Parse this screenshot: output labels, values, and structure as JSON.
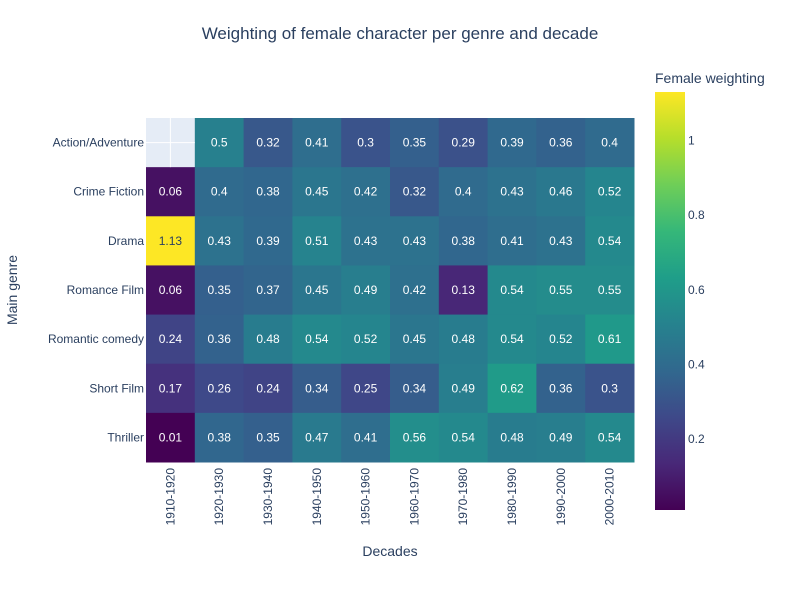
{
  "chart_data": {
    "type": "heatmap",
    "title": "Weighting of female character per genre and decade",
    "xlabel": "Decades",
    "ylabel": "Main genre",
    "colorbar_title": "Female weighting",
    "colorscale": "viridis",
    "zrange": [
      0.01,
      1.13
    ],
    "colorbar_ticks": [
      "0.2",
      "0.4",
      "0.6",
      "0.8",
      "1"
    ],
    "colorbar_tick_values": [
      0.2,
      0.4,
      0.6,
      0.8,
      1.0
    ],
    "x": [
      "1910-1920",
      "1920-1930",
      "1930-1940",
      "1940-1950",
      "1950-1960",
      "1960-1970",
      "1970-1980",
      "1980-1990",
      "1990-2000",
      "2000-2010"
    ],
    "y": [
      "Action/Adventure",
      "Crime Fiction",
      "Drama",
      "Romance Film",
      "Romantic comedy",
      "Short Film",
      "Thriller"
    ],
    "z": [
      [
        null,
        0.5,
        0.32,
        0.41,
        0.3,
        0.35,
        0.29,
        0.39,
        0.36,
        0.4
      ],
      [
        0.06,
        0.4,
        0.38,
        0.45,
        0.42,
        0.32,
        0.4,
        0.43,
        0.46,
        0.52
      ],
      [
        1.13,
        0.43,
        0.39,
        0.51,
        0.43,
        0.43,
        0.38,
        0.41,
        0.43,
        0.54
      ],
      [
        0.06,
        0.35,
        0.37,
        0.45,
        0.49,
        0.42,
        0.13,
        0.54,
        0.55,
        0.55
      ],
      [
        0.24,
        0.36,
        0.48,
        0.54,
        0.52,
        0.45,
        0.48,
        0.54,
        0.52,
        0.61
      ],
      [
        0.17,
        0.26,
        0.24,
        0.34,
        0.25,
        0.34,
        0.49,
        0.62,
        0.36,
        0.3
      ],
      [
        0.01,
        0.38,
        0.35,
        0.47,
        0.41,
        0.56,
        0.54,
        0.48,
        0.49,
        0.54
      ]
    ]
  }
}
